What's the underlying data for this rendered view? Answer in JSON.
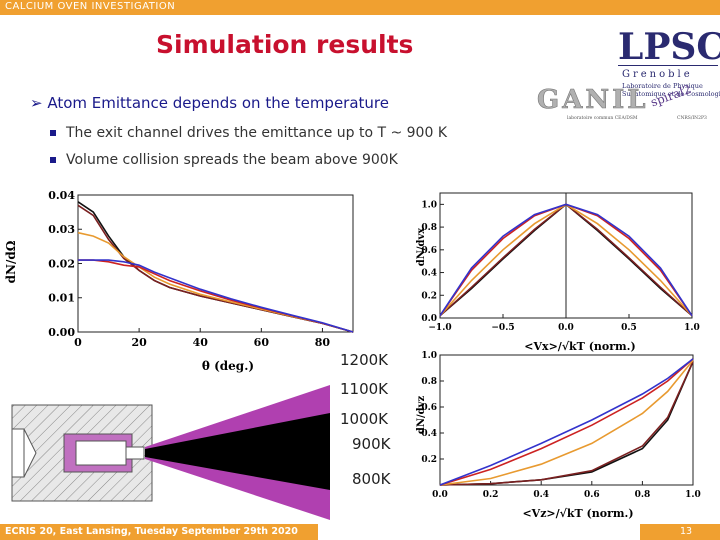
{
  "header": {
    "banner": "CALCIUM OVEN INVESTIGATION",
    "title": "Simulation results"
  },
  "bullets": {
    "main": "Atom Emittance depends on the temperature",
    "sub1": "The exit channel drives the emittance up to T ~ 900 K",
    "sub2": "Volume collision spreads the beam above 900K"
  },
  "logos": {
    "lpsc_text": "LPSC",
    "lpsc_city": "Grenoble",
    "lpsc_line1": "Laboratoire de Physique",
    "lpsc_line2": "Subatomique et de Cosmologie",
    "ganil_text": "GANIL",
    "spiral_text": "spiral2",
    "ganil_left": "laboratoire commun CEA/DSM",
    "ganil_right": "CNRS/IN2P3"
  },
  "temperatures": [
    "1200K",
    "1100K",
    "1000K",
    "900K",
    "800K"
  ],
  "colors": {
    "1200K": "#3333cc",
    "1100K": "#cc2222",
    "1000K": "#e89a30",
    "900K": "#7a2020",
    "800K": "#111111",
    "accent": "#f0a030",
    "title": "#c8102e"
  },
  "footer": {
    "left": "ECRIS 20, East Lansing, Tuesday September 29th 2020",
    "page": "13"
  },
  "chart_data": [
    {
      "type": "line",
      "xlabel": "θ (deg.)",
      "ylabel": "dN/dΩ",
      "xlim": [
        0,
        90
      ],
      "ylim": [
        0,
        0.04
      ],
      "xticks": [
        "0",
        "20",
        "40",
        "60",
        "80"
      ],
      "yticks": [
        "0.00",
        "0.01",
        "0.02",
        "0.03",
        "0.04"
      ],
      "series": [
        {
          "name": "800K",
          "x": [
            0,
            5,
            10,
            15,
            20,
            25,
            30,
            40,
            50,
            60,
            70,
            80,
            90
          ],
          "values": [
            0.038,
            0.035,
            0.028,
            0.022,
            0.018,
            0.015,
            0.013,
            0.0105,
            0.0085,
            0.0065,
            0.0045,
            0.0025,
            0.0
          ]
        },
        {
          "name": "900K",
          "x": [
            0,
            5,
            10,
            15,
            20,
            25,
            30,
            40,
            50,
            60,
            70,
            80,
            90
          ],
          "values": [
            0.037,
            0.034,
            0.027,
            0.0215,
            0.018,
            0.015,
            0.013,
            0.0105,
            0.0085,
            0.0065,
            0.0045,
            0.0025,
            0.0
          ]
        },
        {
          "name": "1000K",
          "x": [
            0,
            5,
            10,
            15,
            20,
            25,
            30,
            40,
            50,
            60,
            70,
            80,
            90
          ],
          "values": [
            0.029,
            0.028,
            0.026,
            0.022,
            0.019,
            0.016,
            0.014,
            0.011,
            0.0088,
            0.0067,
            0.0046,
            0.0026,
            0.0
          ]
        },
        {
          "name": "1100K",
          "x": [
            0,
            5,
            10,
            15,
            20,
            25,
            30,
            40,
            50,
            60,
            70,
            80,
            90
          ],
          "values": [
            0.021,
            0.021,
            0.0205,
            0.0195,
            0.019,
            0.017,
            0.015,
            0.012,
            0.0093,
            0.007,
            0.0048,
            0.0026,
            0.0
          ]
        },
        {
          "name": "1200K",
          "x": [
            0,
            5,
            10,
            15,
            20,
            25,
            30,
            40,
            50,
            60,
            70,
            80,
            90
          ],
          "values": [
            0.021,
            0.021,
            0.021,
            0.0205,
            0.0195,
            0.0175,
            0.0158,
            0.0125,
            0.0097,
            0.0072,
            0.0049,
            0.0027,
            0.0
          ]
        }
      ]
    },
    {
      "type": "line",
      "xlabel": "<Vx>/√kT (norm.)",
      "ylabel": "dN/dvx",
      "xlim": [
        -1.0,
        1.0
      ],
      "ylim": [
        0,
        1.1
      ],
      "xticks": [
        "−1.0",
        "−0.5",
        "0.0",
        "0.5",
        "1.0"
      ],
      "yticks": [
        "0.0",
        "0.2",
        "0.4",
        "0.6",
        "0.8",
        "1.0"
      ],
      "series": [
        {
          "name": "800K",
          "x": [
            -1.0,
            -0.75,
            -0.5,
            -0.25,
            0.0,
            0.25,
            0.5,
            0.75,
            1.0
          ],
          "values": [
            0.02,
            0.26,
            0.52,
            0.77,
            1.0,
            0.77,
            0.52,
            0.26,
            0.02
          ]
        },
        {
          "name": "900K",
          "x": [
            -1.0,
            -0.75,
            -0.5,
            -0.25,
            0.0,
            0.25,
            0.5,
            0.75,
            1.0
          ],
          "values": [
            0.02,
            0.27,
            0.53,
            0.78,
            1.0,
            0.78,
            0.53,
            0.27,
            0.02
          ]
        },
        {
          "name": "1000K",
          "x": [
            -1.0,
            -0.75,
            -0.5,
            -0.25,
            0.0,
            0.25,
            0.5,
            0.75,
            1.0
          ],
          "values": [
            0.02,
            0.33,
            0.6,
            0.83,
            1.0,
            0.83,
            0.6,
            0.33,
            0.02
          ]
        },
        {
          "name": "1100K",
          "x": [
            -1.0,
            -0.75,
            -0.5,
            -0.25,
            0.0,
            0.25,
            0.5,
            0.75,
            1.0
          ],
          "values": [
            0.02,
            0.42,
            0.7,
            0.9,
            1.0,
            0.9,
            0.7,
            0.42,
            0.02
          ]
        },
        {
          "name": "1200K",
          "x": [
            -1.0,
            -0.75,
            -0.5,
            -0.25,
            0.0,
            0.25,
            0.5,
            0.75,
            1.0
          ],
          "values": [
            0.02,
            0.44,
            0.72,
            0.91,
            1.0,
            0.91,
            0.72,
            0.44,
            0.02
          ]
        }
      ]
    },
    {
      "type": "line",
      "xlabel": "<Vz>/√kT (norm.)",
      "ylabel": "dN/dvz",
      "xlim": [
        0,
        1.0
      ],
      "ylim": [
        0,
        1.0
      ],
      "xticks": [
        "0.0",
        "0.2",
        "0.4",
        "0.6",
        "0.8",
        "1.0"
      ],
      "yticks": [
        "0.2",
        "0.4",
        "0.6",
        "0.8",
        "1.0"
      ],
      "series": [
        {
          "name": "800K",
          "x": [
            0,
            0.2,
            0.4,
            0.6,
            0.8,
            0.9,
            1.0
          ],
          "values": [
            0.0,
            0.01,
            0.04,
            0.1,
            0.28,
            0.5,
            0.95
          ]
        },
        {
          "name": "900K",
          "x": [
            0,
            0.2,
            0.4,
            0.6,
            0.8,
            0.9,
            1.0
          ],
          "values": [
            0.0,
            0.01,
            0.04,
            0.11,
            0.3,
            0.52,
            0.95
          ]
        },
        {
          "name": "1000K",
          "x": [
            0,
            0.2,
            0.4,
            0.6,
            0.8,
            0.9,
            1.0
          ],
          "values": [
            0.0,
            0.05,
            0.16,
            0.32,
            0.55,
            0.72,
            0.96
          ]
        },
        {
          "name": "1100K",
          "x": [
            0,
            0.2,
            0.4,
            0.6,
            0.8,
            0.9,
            1.0
          ],
          "values": [
            0.0,
            0.12,
            0.28,
            0.46,
            0.67,
            0.8,
            0.97
          ]
        },
        {
          "name": "1200K",
          "x": [
            0,
            0.2,
            0.4,
            0.6,
            0.8,
            0.9,
            1.0
          ],
          "values": [
            0.0,
            0.15,
            0.32,
            0.5,
            0.7,
            0.82,
            0.97
          ]
        }
      ]
    }
  ]
}
